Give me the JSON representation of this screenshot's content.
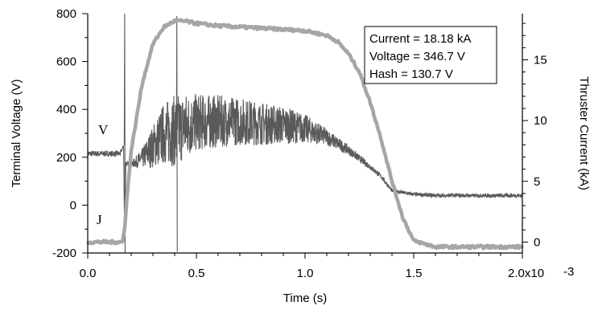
{
  "chart_data": {
    "type": "line",
    "xlabel": "Time (s)",
    "ylabel_left": "Terminal Voltage (V)",
    "ylabel_right": "Thruster Current (kA)",
    "x_ticks": [
      "0.0",
      "0.5",
      "1.0",
      "1.5",
      "2.0x10"
    ],
    "x_tick_exponent": "-3",
    "y_left_ticks": [
      "-200",
      "0",
      "200",
      "400",
      "600",
      "800"
    ],
    "y_right_ticks": [
      "0",
      "5",
      "10",
      "15"
    ],
    "xlim": [
      0,
      0.002
    ],
    "ylim_left": [
      -200,
      800
    ],
    "ylim_right": [
      -0.9,
      18.8
    ],
    "annotation_lines": [
      "Current = 18.18 kA",
      "Voltage = 346.7 V",
      "Hash = 130.7 V"
    ],
    "curve_labels": {
      "voltage": "V",
      "current": "J"
    },
    "series": [
      {
        "key": "voltage",
        "axis": "left",
        "color": "#5a5a5a",
        "noisy": true,
        "x": [
          0,
          0.00015,
          0.000165,
          0.00017,
          0.000175,
          0.0002,
          0.00025,
          0.0003,
          0.00035,
          0.0004,
          0.00045,
          0.0005,
          0.0006,
          0.0007,
          0.0008,
          0.0009,
          0.001,
          0.0011,
          0.0012,
          0.0013,
          0.00135,
          0.0014,
          0.0015,
          0.0016,
          0.0018,
          0.002
        ],
        "y": [
          215,
          215,
          250,
          -150,
          175,
          170,
          195,
          245,
          300,
          310,
          330,
          345,
          350,
          350,
          340,
          335,
          320,
          285,
          230,
          160,
          120,
          60,
          45,
          40,
          40,
          40
        ],
        "noise": [
          12,
          12,
          0,
          0,
          10,
          12,
          40,
          90,
          130,
          150,
          140,
          120,
          110,
          100,
          90,
          80,
          60,
          35,
          20,
          12,
          10,
          8,
          8,
          8,
          8,
          8
        ]
      },
      {
        "key": "current",
        "axis": "right",
        "color": "#a6a6a6",
        "noisy": false,
        "x": [
          0,
          0.00016,
          0.00017,
          0.00018,
          0.0002,
          0.00025,
          0.0003,
          0.00035,
          0.0004,
          0.00045,
          0.0005,
          0.0006,
          0.0008,
          0.001,
          0.0011,
          0.00115,
          0.0012,
          0.00125,
          0.0013,
          0.00135,
          0.0014,
          0.00145,
          0.0015,
          0.0016,
          0.0018,
          0.002
        ],
        "y": [
          0,
          0,
          1.2,
          3.5,
          7.5,
          13.0,
          16.3,
          17.7,
          18.2,
          18.18,
          18.0,
          17.8,
          17.6,
          17.4,
          17.0,
          16.5,
          15.5,
          14.0,
          11.5,
          8.5,
          5.0,
          2.0,
          0.1,
          -0.4,
          -0.4,
          -0.4
        ]
      }
    ]
  }
}
